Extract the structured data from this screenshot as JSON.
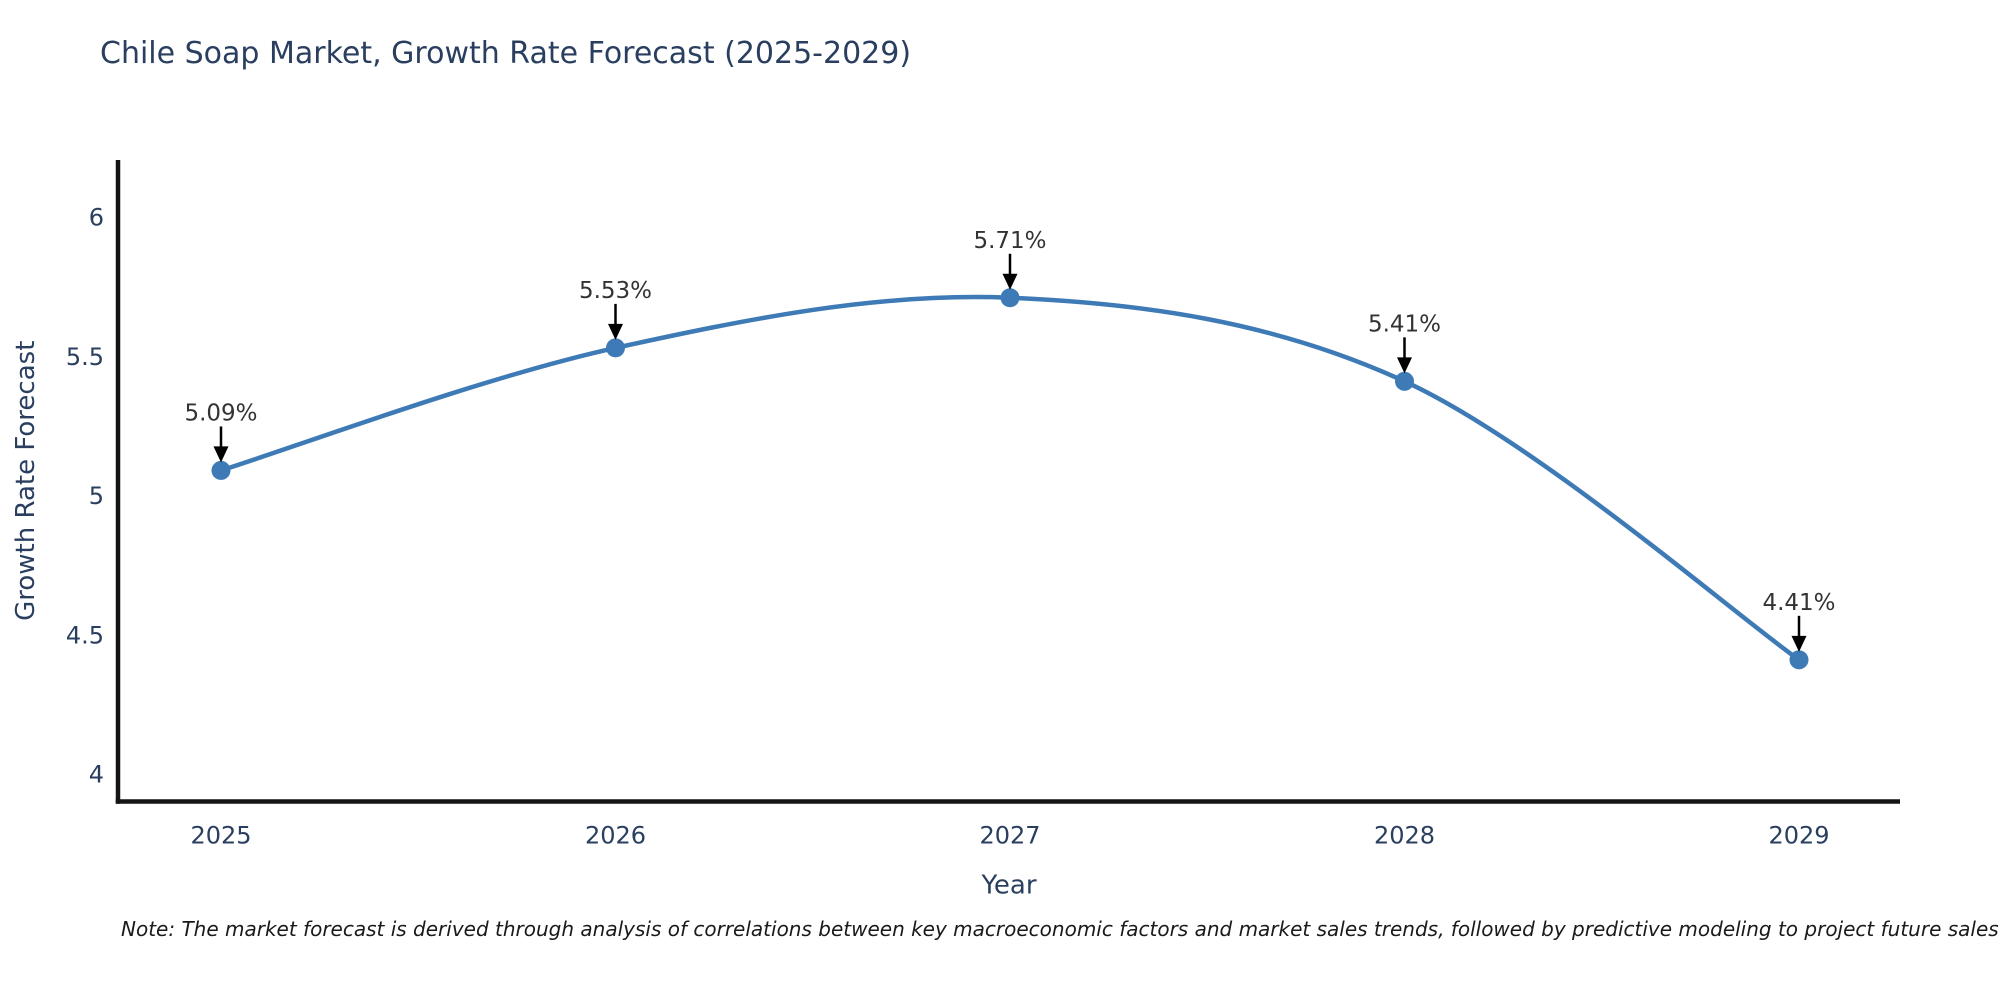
{
  "chart_data": {
    "type": "line",
    "title": "Chile Soap Market, Growth Rate Forecast (2025-2029)",
    "xlabel": "Year",
    "ylabel": "Growth Rate Forecast",
    "x": [
      2025,
      2026,
      2027,
      2028,
      2029
    ],
    "x_tick_labels": [
      "2025",
      "2026",
      "2027",
      "2028",
      "2029"
    ],
    "series": [
      {
        "name": "Growth Rate Forecast",
        "values": [
          5.09,
          5.53,
          5.71,
          5.41,
          4.41
        ],
        "point_labels": [
          "5.09%",
          "5.53%",
          "5.71%",
          "5.41%",
          "4.41%"
        ]
      }
    ],
    "y_ticks": [
      4,
      4.5,
      5,
      5.5,
      6
    ],
    "y_tick_labels": [
      "4",
      "4.5",
      "5",
      "5.5",
      "6"
    ],
    "ylim": [
      3.9,
      6.3
    ],
    "line_shape": "spline",
    "grid": false,
    "legend": "none",
    "colors": {
      "line": "#3E7AB5",
      "marker": "#3E7AB5",
      "axis": "#141414",
      "tick_text": "#2a3f5f",
      "title_text": "#2a3f5f",
      "annotation_text": "#333333",
      "arrow": "#000000"
    }
  },
  "note": {
    "text": "Note: The market forecast is derived through analysis of correlations between key macroeconomic factors and market sales trends, followed by predictive modeling to project future sales"
  }
}
